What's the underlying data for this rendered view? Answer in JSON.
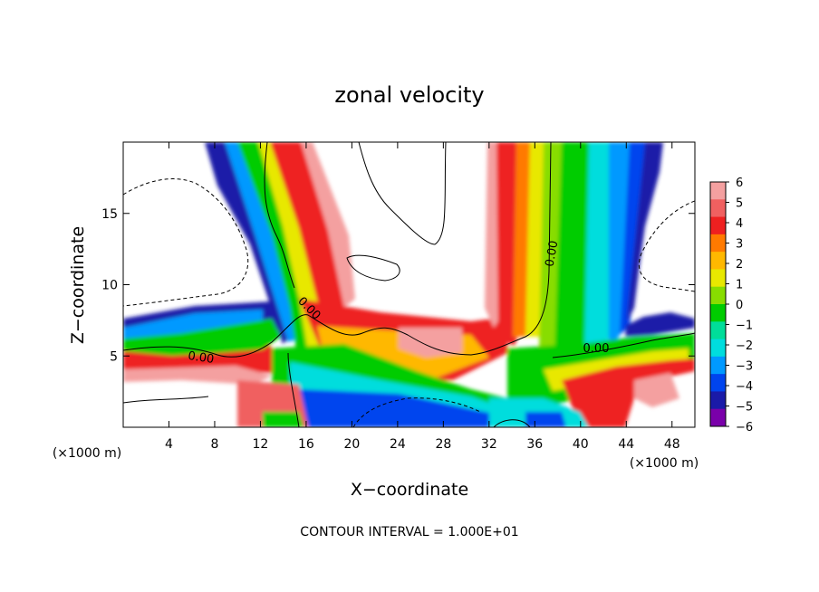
{
  "chart_data": {
    "type": "heatmap",
    "title": "zonal velocity",
    "xlabel": "X−coordinate",
    "ylabel": "Z−coordinate",
    "x_unit_left": "(×1000 m)",
    "x_unit_right": "(×1000 m)",
    "xlim": [
      0,
      50
    ],
    "ylim": [
      0,
      20
    ],
    "x_ticks": [
      4,
      8,
      12,
      16,
      20,
      24,
      28,
      32,
      36,
      40,
      44,
      48
    ],
    "y_ticks": [
      5,
      10,
      15
    ],
    "colorbar": {
      "levels": [
        6,
        5,
        4,
        3,
        2,
        1,
        0,
        -1,
        -2,
        -3,
        -4,
        -5,
        -6
      ],
      "labels": [
        "6",
        "5",
        "4",
        "3",
        "2",
        "1",
        "0",
        "−1",
        "−2",
        "−3",
        "−4",
        "−5",
        "−6"
      ],
      "colors": [
        "#f4a0a0",
        "#f06060",
        "#ee2020",
        "#ff7a00",
        "#ffb800",
        "#e8e800",
        "#88dd00",
        "#00cc00",
        "#00dd99",
        "#00dddd",
        "#0099ff",
        "#0044ee",
        "#1a1aa8",
        "#7a00aa"
      ]
    },
    "zero_contour_labels": [
      "0.00",
      "0.00",
      "0.00",
      "0.00"
    ],
    "footer": "CONTOUR INTERVAL = 1.000E+01"
  }
}
